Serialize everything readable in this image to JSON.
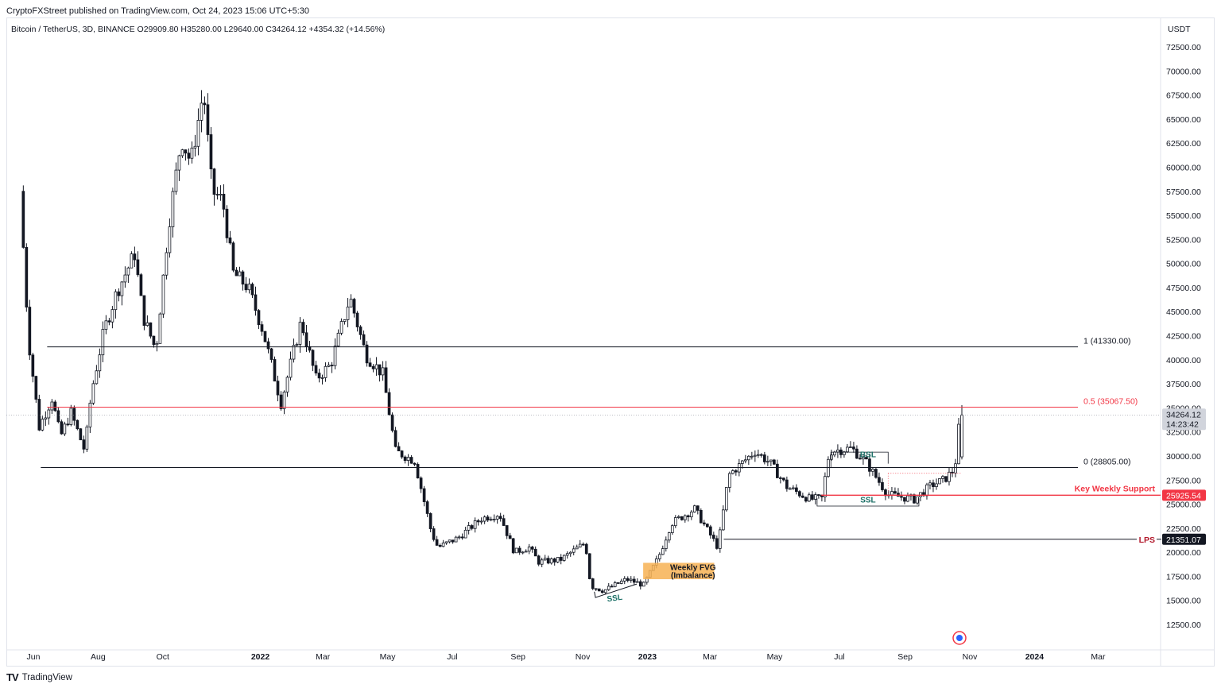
{
  "header": {
    "published": "CryptoFXStreet published on TradingView.com, Oct 24, 2023 15:06 UTC+5:30",
    "symbol_line": "Bitcoin / TetherUS, 3D, BINANCE  O29909.80  H35280.00  L29640.00  C34264.12  +4354.32 (+14.56%)"
  },
  "footer": {
    "logo": "TV",
    "brand": "TradingView"
  },
  "chart_data": {
    "type": "candlestick",
    "symbol": "Bitcoin / TetherUS",
    "interval": "3D",
    "exchange": "BINANCE",
    "currency": "USDT",
    "ohlc_last": {
      "open": 29909.8,
      "high": 35280.0,
      "low": 29640.0,
      "close": 34264.12,
      "change": 4354.32,
      "change_pct": "+14.56%"
    },
    "y_ticks": [
      "72500.00",
      "70000.00",
      "67500.00",
      "65000.00",
      "62500.00",
      "60000.00",
      "57500.00",
      "55000.00",
      "52500.00",
      "50000.00",
      "47500.00",
      "45000.00",
      "42500.00",
      "40000.00",
      "37500.00",
      "35000.00",
      "32500.00",
      "30000.00",
      "27500.00",
      "25000.00",
      "22500.00",
      "20000.00",
      "17500.00",
      "15000.00",
      "12500.00"
    ],
    "x_ticks": [
      "Jun",
      "Aug",
      "Oct",
      "2022",
      "Mar",
      "May",
      "Jul",
      "Sep",
      "Nov",
      "2023",
      "Mar",
      "May",
      "Jul",
      "Sep",
      "Nov",
      "2024",
      "Mar"
    ],
    "ylim": [
      10000,
      75000
    ],
    "price_path": [
      [
        "2021-05-21",
        57500
      ],
      [
        "2021-05-29",
        42000
      ],
      [
        "2021-06-08",
        33000
      ],
      [
        "2021-06-20",
        36000
      ],
      [
        "2021-06-28",
        32000
      ],
      [
        "2021-07-08",
        34500
      ],
      [
        "2021-07-21",
        30500
      ],
      [
        "2021-07-27",
        36500
      ],
      [
        "2021-08-08",
        43000
      ],
      [
        "2021-08-20",
        47000
      ],
      [
        "2021-09-06",
        51000
      ],
      [
        "2021-09-14",
        44500
      ],
      [
        "2021-09-26",
        41000
      ],
      [
        "2021-10-08",
        54000
      ],
      [
        "2021-10-20",
        63000
      ],
      [
        "2021-10-29",
        60500
      ],
      [
        "2021-11-10",
        68000
      ],
      [
        "2021-11-18",
        57500
      ],
      [
        "2021-11-28",
        56500
      ],
      [
        "2021-12-08",
        49000
      ],
      [
        "2021-12-22",
        47500
      ],
      [
        "2022-01-05",
        43000
      ],
      [
        "2022-01-22",
        35500
      ],
      [
        "2022-02-10",
        44000
      ],
      [
        "2022-02-24",
        38000
      ],
      [
        "2022-03-10",
        39500
      ],
      [
        "2022-03-28",
        46500
      ],
      [
        "2022-04-12",
        40500
      ],
      [
        "2022-04-28",
        38500
      ],
      [
        "2022-05-10",
        30500
      ],
      [
        "2022-05-28",
        29500
      ],
      [
        "2022-06-13",
        22000
      ],
      [
        "2022-06-19",
        20500
      ],
      [
        "2022-07-08",
        21500
      ],
      [
        "2022-07-30",
        23500
      ],
      [
        "2022-08-16",
        24000
      ],
      [
        "2022-08-30",
        20000
      ],
      [
        "2022-09-13",
        20500
      ],
      [
        "2022-09-22",
        19000
      ],
      [
        "2022-10-12",
        19200
      ],
      [
        "2022-11-05",
        21000
      ],
      [
        "2022-11-10",
        16500
      ],
      [
        "2022-11-22",
        16000
      ],
      [
        "2022-12-14",
        17200
      ],
      [
        "2022-12-30",
        16600
      ],
      [
        "2023-01-13",
        19500
      ],
      [
        "2023-01-25",
        23000
      ],
      [
        "2023-02-16",
        24500
      ],
      [
        "2023-03-10",
        20500
      ],
      [
        "2023-03-20",
        28000
      ],
      [
        "2023-04-14",
        30500
      ],
      [
        "2023-04-28",
        29300
      ],
      [
        "2023-05-14",
        26800
      ],
      [
        "2023-06-05",
        25500
      ],
      [
        "2023-06-16",
        25600
      ],
      [
        "2023-06-23",
        30500
      ],
      [
        "2023-07-14",
        30800
      ],
      [
        "2023-07-28",
        29300
      ],
      [
        "2023-08-17",
        26000
      ],
      [
        "2023-09-11",
        25500
      ],
      [
        "2023-09-28",
        27000
      ],
      [
        "2023-10-09",
        27500
      ],
      [
        "2023-10-18",
        28500
      ],
      [
        "2023-10-21",
        29909.8
      ],
      [
        "2023-10-24",
        34264.12
      ]
    ],
    "fibonacci": [
      {
        "label": "1 (41330.00)",
        "price": 41330.0,
        "color": "#131722"
      },
      {
        "label": "0.5 (35067.50)",
        "price": 35067.5,
        "color": "#f23645"
      },
      {
        "label": "0 (28805.00)",
        "price": 28805.0,
        "color": "#131722"
      }
    ],
    "levels": [
      {
        "label": "Key Weekly Support",
        "price": 25925.54,
        "badge": "25925.54",
        "color": "#f23645"
      },
      {
        "label": "LPS",
        "price": 21351.07,
        "badge": "21351.07",
        "color": "#131722",
        "label_color": "#b2182b"
      }
    ],
    "last_price": {
      "value": "34264.12",
      "countdown": "14:23:42"
    },
    "annotations": [
      {
        "text": "SSL",
        "color": "#1b6f66",
        "date": "2022-12-01",
        "price": 15300
      },
      {
        "text": "Weekly FVG\n(Imbalance)",
        "color": "#131722",
        "fill": "#f7b254",
        "date_start": "2022-12-28",
        "date_end": "2023-03-05",
        "price_low": 17200,
        "price_high": 18900
      },
      {
        "text": "BSL",
        "color": "#1b6f66",
        "date": "2023-07-28",
        "price": 30200
      },
      {
        "text": "SSL",
        "color": "#1b6f66",
        "date": "2023-07-28",
        "price": 25500
      }
    ],
    "grid": false
  }
}
